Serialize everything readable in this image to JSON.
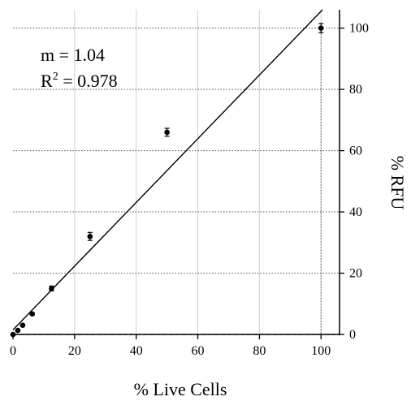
{
  "chart_data": {
    "type": "scatter",
    "xlabel": "% Live Cells",
    "ylabel": "% RFU",
    "xlim": [
      0,
      106
    ],
    "ylim": [
      0,
      106
    ],
    "xticks": [
      0,
      20,
      40,
      60,
      80,
      100
    ],
    "yticks": [
      0,
      20,
      40,
      60,
      80,
      100
    ],
    "y_axis_side": "right",
    "grid": true,
    "annotations": {
      "slope": "m = 1.04",
      "r2_prefix": "R",
      "r2_exp": "2",
      "r2_value": " = 0.978"
    },
    "points": [
      {
        "x": 0,
        "y": 0,
        "err": 0.3
      },
      {
        "x": 1.56,
        "y": 1.3,
        "err": 0.3
      },
      {
        "x": 3.13,
        "y": 3.0,
        "err": 0.3
      },
      {
        "x": 6.25,
        "y": 6.7,
        "err": 0.4
      },
      {
        "x": 12.5,
        "y": 15.0,
        "err": 0.8
      },
      {
        "x": 25,
        "y": 32.0,
        "err": 1.3
      },
      {
        "x": 50,
        "y": 66.0,
        "err": 1.3
      },
      {
        "x": 100,
        "y": 100.0,
        "err": 1.5
      }
    ],
    "fit": {
      "slope": 1.04,
      "intercept": 1.5
    },
    "zero_line": true
  }
}
